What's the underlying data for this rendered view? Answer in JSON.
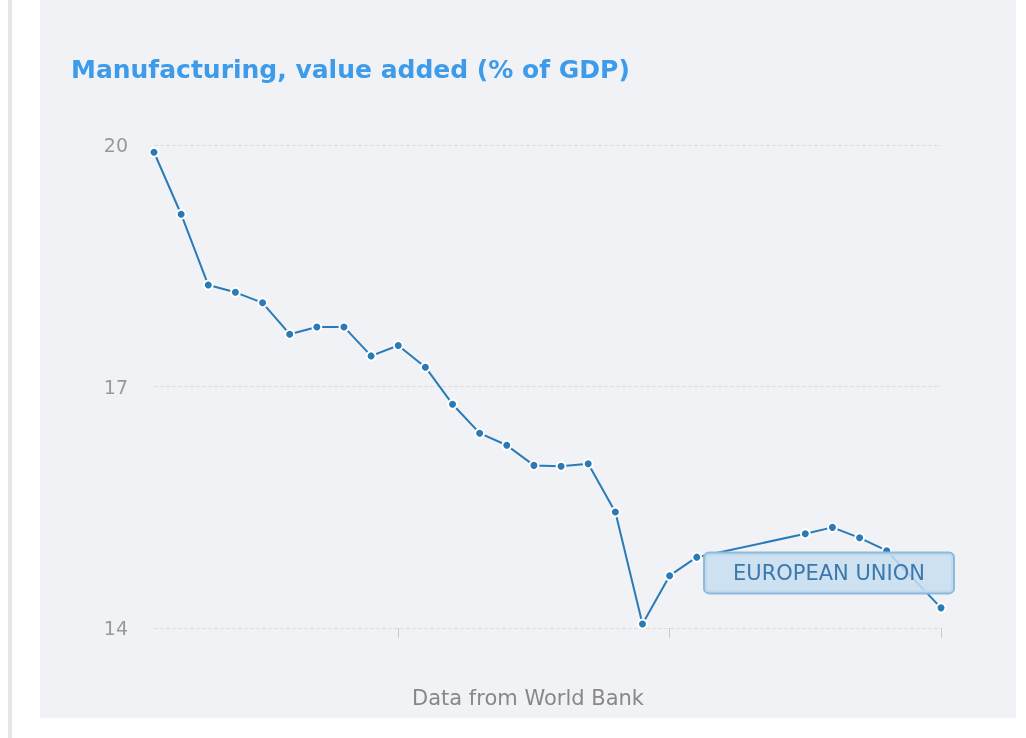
{
  "chart_data": {
    "type": "line",
    "title": "Manufacturing, value added (% of GDP)",
    "categories": [
      null,
      null,
      null,
      null,
      null,
      null,
      null,
      null,
      null,
      null,
      null,
      null,
      null,
      null,
      null,
      null,
      null,
      null,
      null,
      null,
      null,
      null,
      null,
      null,
      null,
      null,
      null,
      null,
      null,
      null
    ],
    "series": [
      {
        "name": "EUROPEAN UNION",
        "color": "#2a7ab8",
        "values": [
          19.91,
          19.14,
          18.26,
          18.17,
          18.04,
          17.65,
          17.74,
          17.74,
          17.38,
          17.51,
          17.24,
          16.78,
          16.42,
          16.27,
          16.02,
          16.01,
          16.04,
          15.44,
          14.05,
          14.65,
          14.88,
          null,
          null,
          null,
          15.17,
          15.25,
          15.12,
          14.96,
          null,
          14.25
        ]
      }
    ],
    "ylim": [
      14,
      20
    ],
    "yticks": [
      14,
      17,
      20
    ],
    "grid": "y",
    "marker": "circle",
    "line_style": "solid",
    "legend": false,
    "annotations": [
      "Data from World Bank"
    ]
  }
}
